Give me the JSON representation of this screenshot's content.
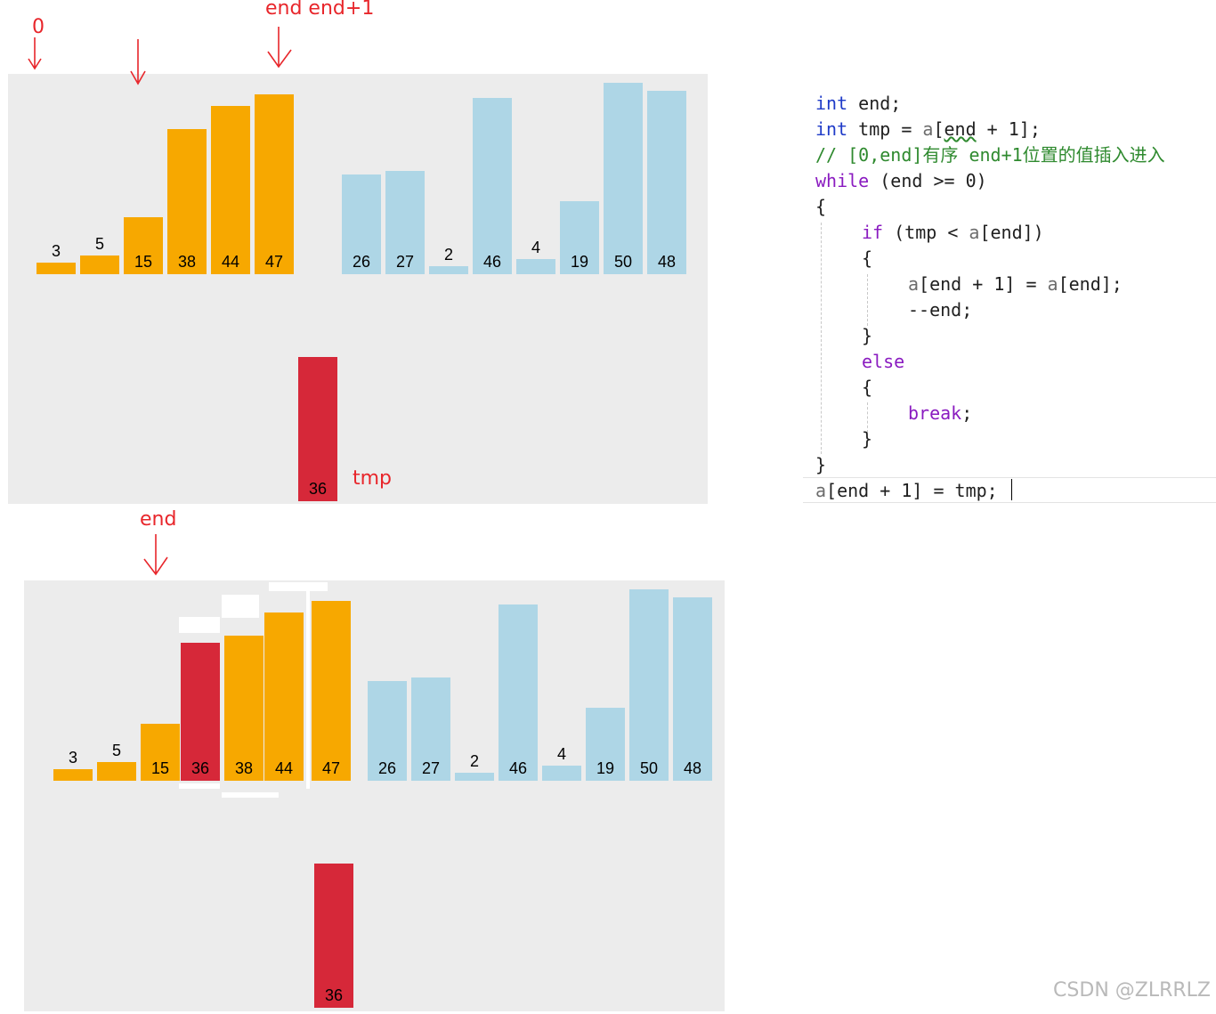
{
  "colors": {
    "sorted": "#f7a800",
    "unsorted": "#aed6e6",
    "tmp": "#d62839",
    "annotation": "#e8262b",
    "panel": "#ececec"
  },
  "chart_data": [
    {
      "type": "bar",
      "name": "before",
      "values": [
        3,
        5,
        15,
        38,
        44,
        47,
        26,
        27,
        2,
        46,
        4,
        19,
        50,
        48
      ],
      "groups": [
        "sorted",
        "sorted",
        "sorted",
        "sorted",
        "sorted",
        "sorted",
        "unsorted",
        "unsorted",
        "unsorted",
        "unsorted",
        "unsorted",
        "unsorted",
        "unsorted",
        "unsorted"
      ],
      "tmp_value": 36
    },
    {
      "type": "bar",
      "name": "after",
      "values": [
        3,
        5,
        15,
        36,
        38,
        44,
        47,
        26,
        27,
        2,
        46,
        4,
        19,
        50,
        48
      ],
      "groups": [
        "sorted",
        "sorted",
        "sorted",
        "tmp",
        "sorted",
        "sorted",
        "sorted",
        "unsorted",
        "unsorted",
        "unsorted",
        "unsorted",
        "unsorted",
        "unsorted",
        "unsorted",
        "unsorted"
      ],
      "tmp_value": 36
    }
  ],
  "annotations": {
    "top_zero": "0",
    "top_end": "end end+1",
    "top_tmp": "tmp",
    "bottom_end": "end"
  },
  "code": {
    "l1_kw": "int",
    "l1_rest": " end;",
    "l2_kw": "int",
    "l2_a": " tmp = ",
    "l2_arr": "a",
    "l2_b": "[",
    "l2_sq": "end",
    "l2_c": " + 1];",
    "l3": "// [0,end]有序 end+1位置的值插入进入",
    "l4_kw": "while",
    "l4_rest": " (end >= 0)",
    "l5": "{",
    "l6_kw": "if",
    "l6_a": " (tmp < ",
    "l6_arr": "a",
    "l6_b": "[end])",
    "l7": "{",
    "l8_arr1": "a",
    "l8_a": "[end + 1] = ",
    "l8_arr2": "a",
    "l8_b": "[end];",
    "l9": "--end;",
    "l10": "}",
    "l11_kw": "else",
    "l12": "{",
    "l13_kw": "break",
    "l13_rest": ";",
    "l14": "}",
    "l15": "}",
    "l16_arr": "a",
    "l16_rest": "[end + 1] = tmp;"
  },
  "watermark": "CSDN @ZLRRLZ"
}
